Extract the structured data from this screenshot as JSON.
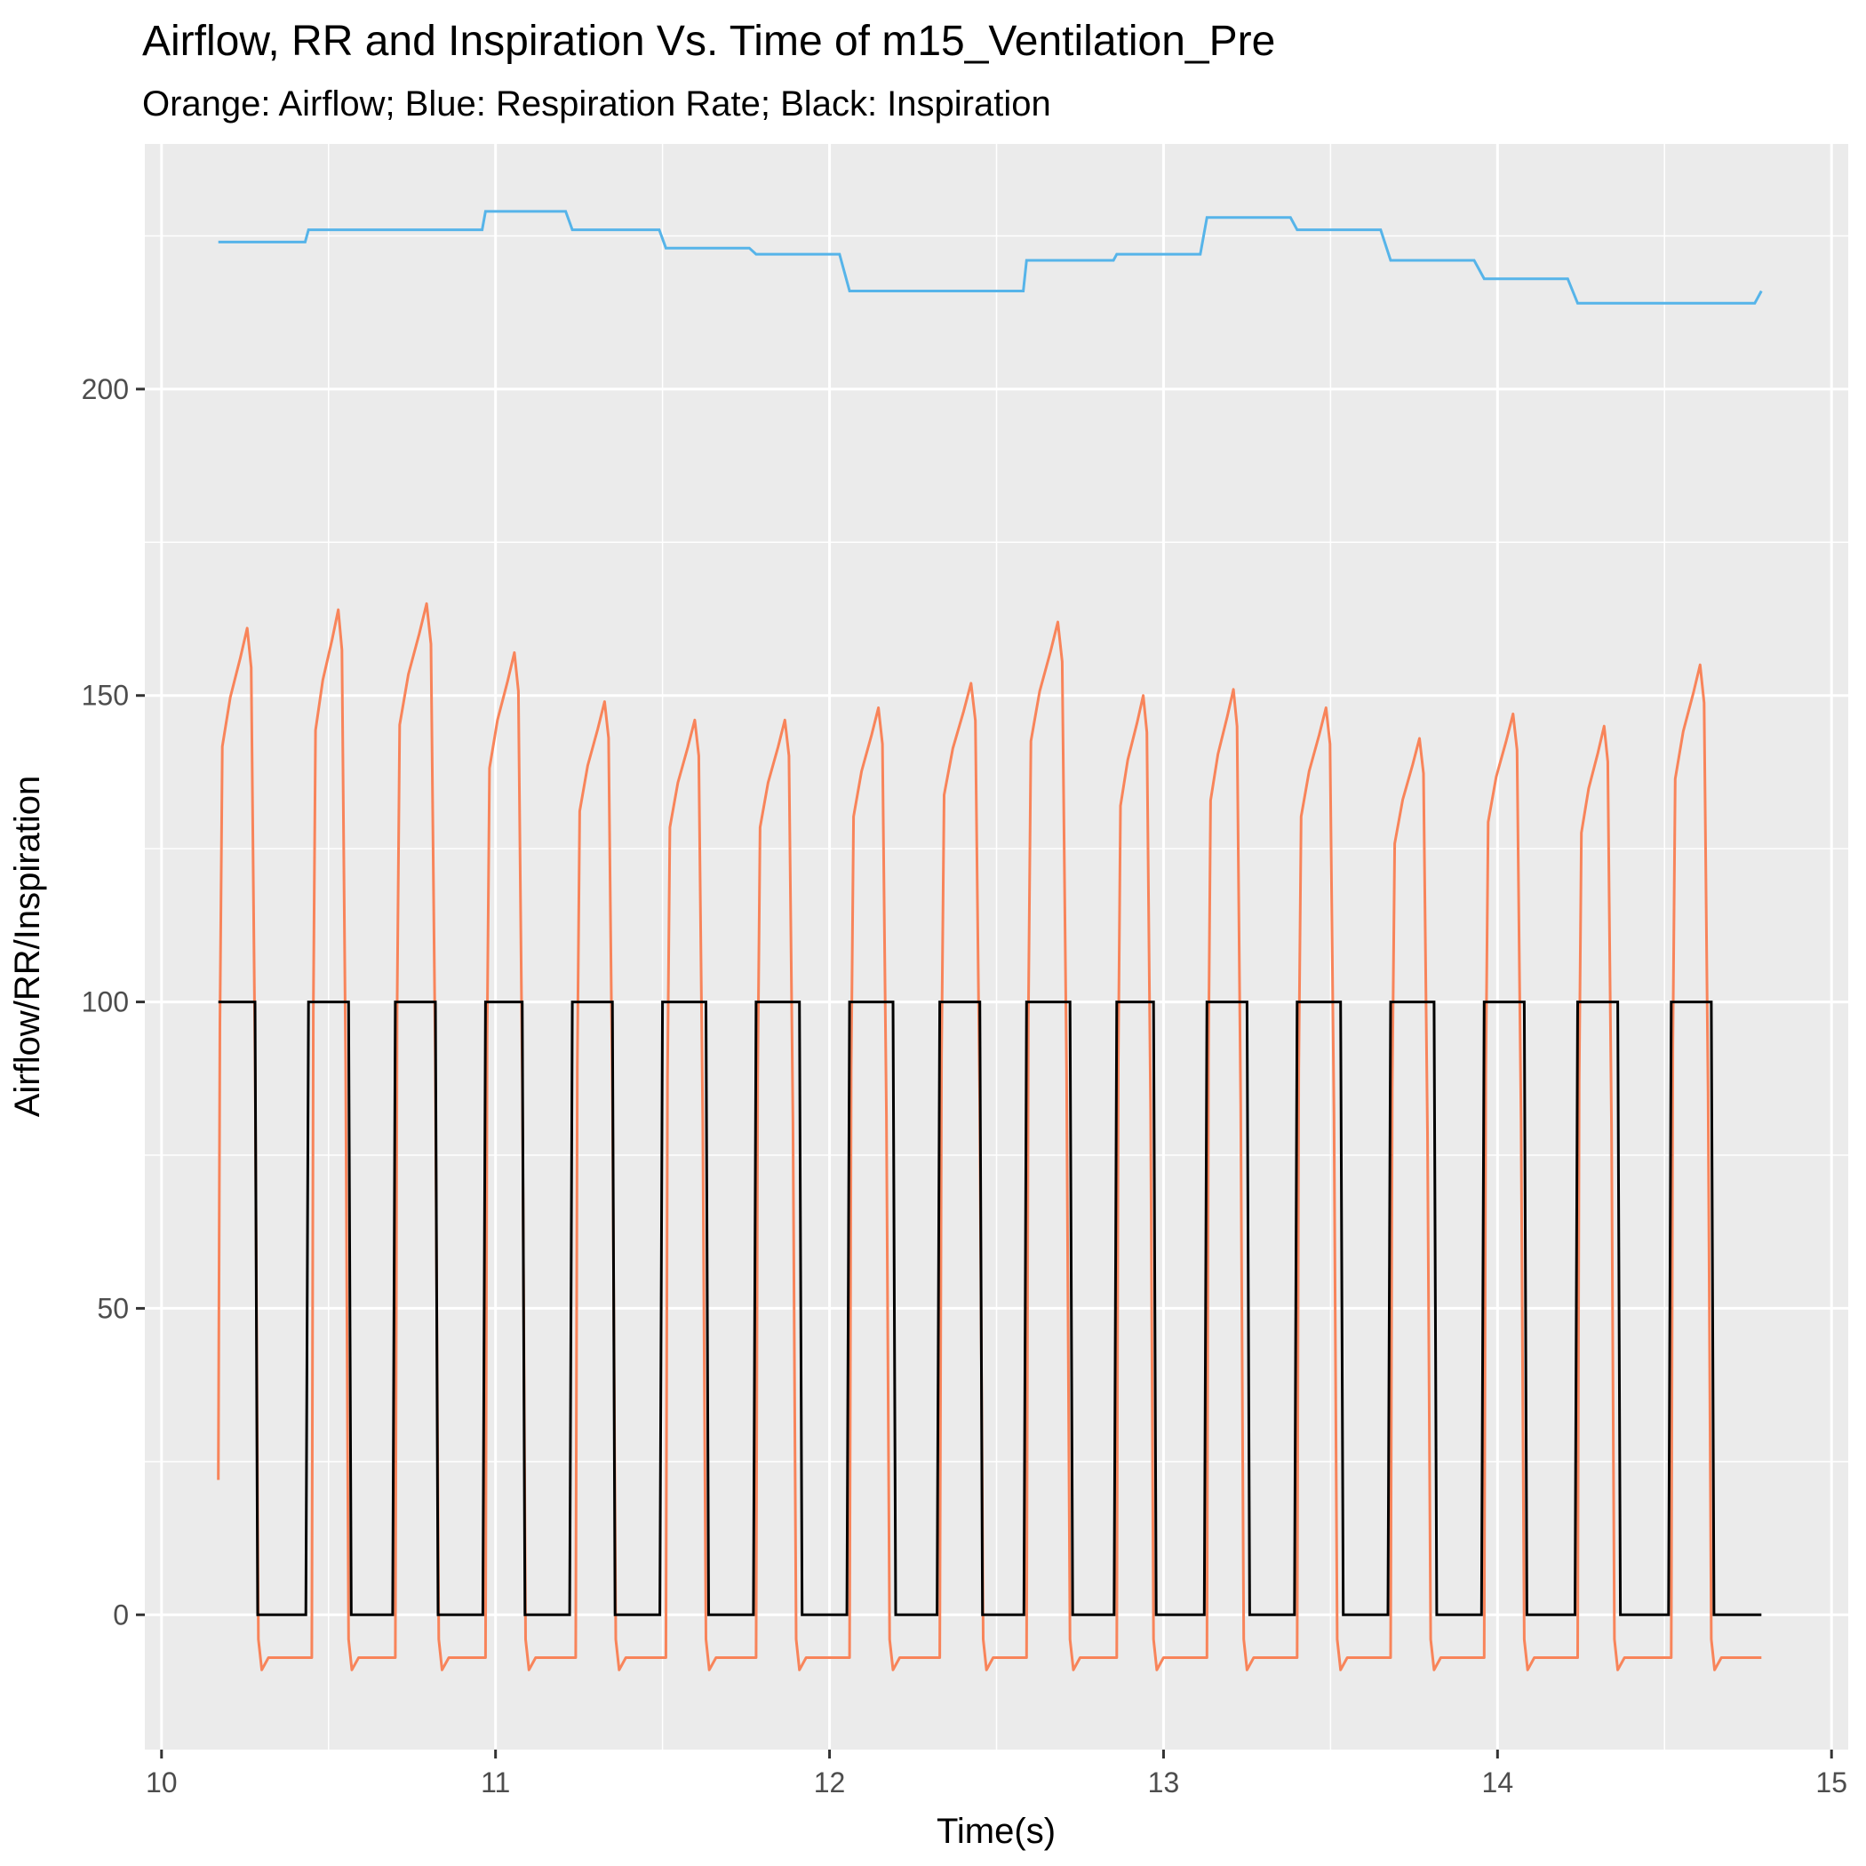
{
  "chart_data": {
    "type": "line",
    "title": "Airflow, RR and Inspiration Vs. Time  of  m15_Ventilation_Pre",
    "subtitle": "Orange: Airflow; Blue: Respiration Rate; Black: Inspiration",
    "xlabel": "Time(s)",
    "ylabel": "Airflow/RR/Inspiration",
    "xlim": [
      9.95,
      15.05
    ],
    "ylim": [
      -22,
      240
    ],
    "x_ticks": [
      10,
      11,
      12,
      13,
      14,
      15
    ],
    "y_ticks": [
      0,
      50,
      100,
      150,
      200
    ],
    "grid": true,
    "panel_background": "#ebebeb",
    "grid_color": "#ffffff",
    "series": [
      {
        "color": "#56b4e9",
        "x": [
          10.17,
          10.43,
          10.44,
          10.96,
          10.97,
          11.21,
          11.23,
          11.49,
          11.51,
          11.76,
          11.78,
          12.03,
          12.06,
          12.58,
          12.59,
          12.85,
          12.86,
          13.11,
          13.13,
          13.38,
          13.4,
          13.65,
          13.68,
          13.93,
          13.96,
          14.21,
          14.24,
          14.77,
          14.79
        ],
        "y": [
          224,
          224,
          226,
          226,
          229,
          229,
          226,
          226,
          223,
          223,
          222,
          222,
          216,
          216,
          221,
          221,
          222,
          222,
          228,
          228,
          226,
          226,
          221,
          221,
          218,
          218,
          214,
          214,
          216
        ]
      },
      {
        "color": "#f8845a",
        "peaks": [
          {
            "start": 10.17,
            "end": 10.29,
            "peak": 161
          },
          {
            "start": 10.45,
            "end": 10.56,
            "peak": 164
          },
          {
            "start": 10.7,
            "end": 10.83,
            "peak": 165
          },
          {
            "start": 10.97,
            "end": 11.09,
            "peak": 157
          },
          {
            "start": 11.24,
            "end": 11.36,
            "peak": 149
          },
          {
            "start": 11.51,
            "end": 11.63,
            "peak": 146
          },
          {
            "start": 11.78,
            "end": 11.9,
            "peak": 146
          },
          {
            "start": 12.06,
            "end": 12.18,
            "peak": 148
          },
          {
            "start": 12.33,
            "end": 12.46,
            "peak": 152
          },
          {
            "start": 12.59,
            "end": 12.72,
            "peak": 162
          },
          {
            "start": 12.86,
            "end": 12.97,
            "peak": 150
          },
          {
            "start": 13.13,
            "end": 13.24,
            "peak": 151
          },
          {
            "start": 13.4,
            "end": 13.52,
            "peak": 148
          },
          {
            "start": 13.68,
            "end": 13.8,
            "peak": 143
          },
          {
            "start": 13.96,
            "end": 14.08,
            "peak": 147
          },
          {
            "start": 14.24,
            "end": 14.35,
            "peak": 145
          },
          {
            "start": 14.52,
            "end": 14.64,
            "peak": 155
          }
        ],
        "baseline": -7,
        "start_value": 22
      },
      {
        "color": "#000000",
        "high": 100,
        "low": 0,
        "intervals": [
          [
            10.17,
            10.28
          ],
          [
            10.44,
            10.56
          ],
          [
            10.7,
            10.82
          ],
          [
            10.97,
            11.08
          ],
          [
            11.23,
            11.35
          ],
          [
            11.5,
            11.63
          ],
          [
            11.78,
            11.91
          ],
          [
            12.06,
            12.19
          ],
          [
            12.33,
            12.45
          ],
          [
            12.59,
            12.72
          ],
          [
            12.86,
            12.97
          ],
          [
            13.13,
            13.25
          ],
          [
            13.4,
            13.53
          ],
          [
            13.68,
            13.81
          ],
          [
            13.96,
            14.08
          ],
          [
            14.24,
            14.36
          ],
          [
            14.52,
            14.64
          ]
        ],
        "x_end": 14.79
      }
    ]
  }
}
